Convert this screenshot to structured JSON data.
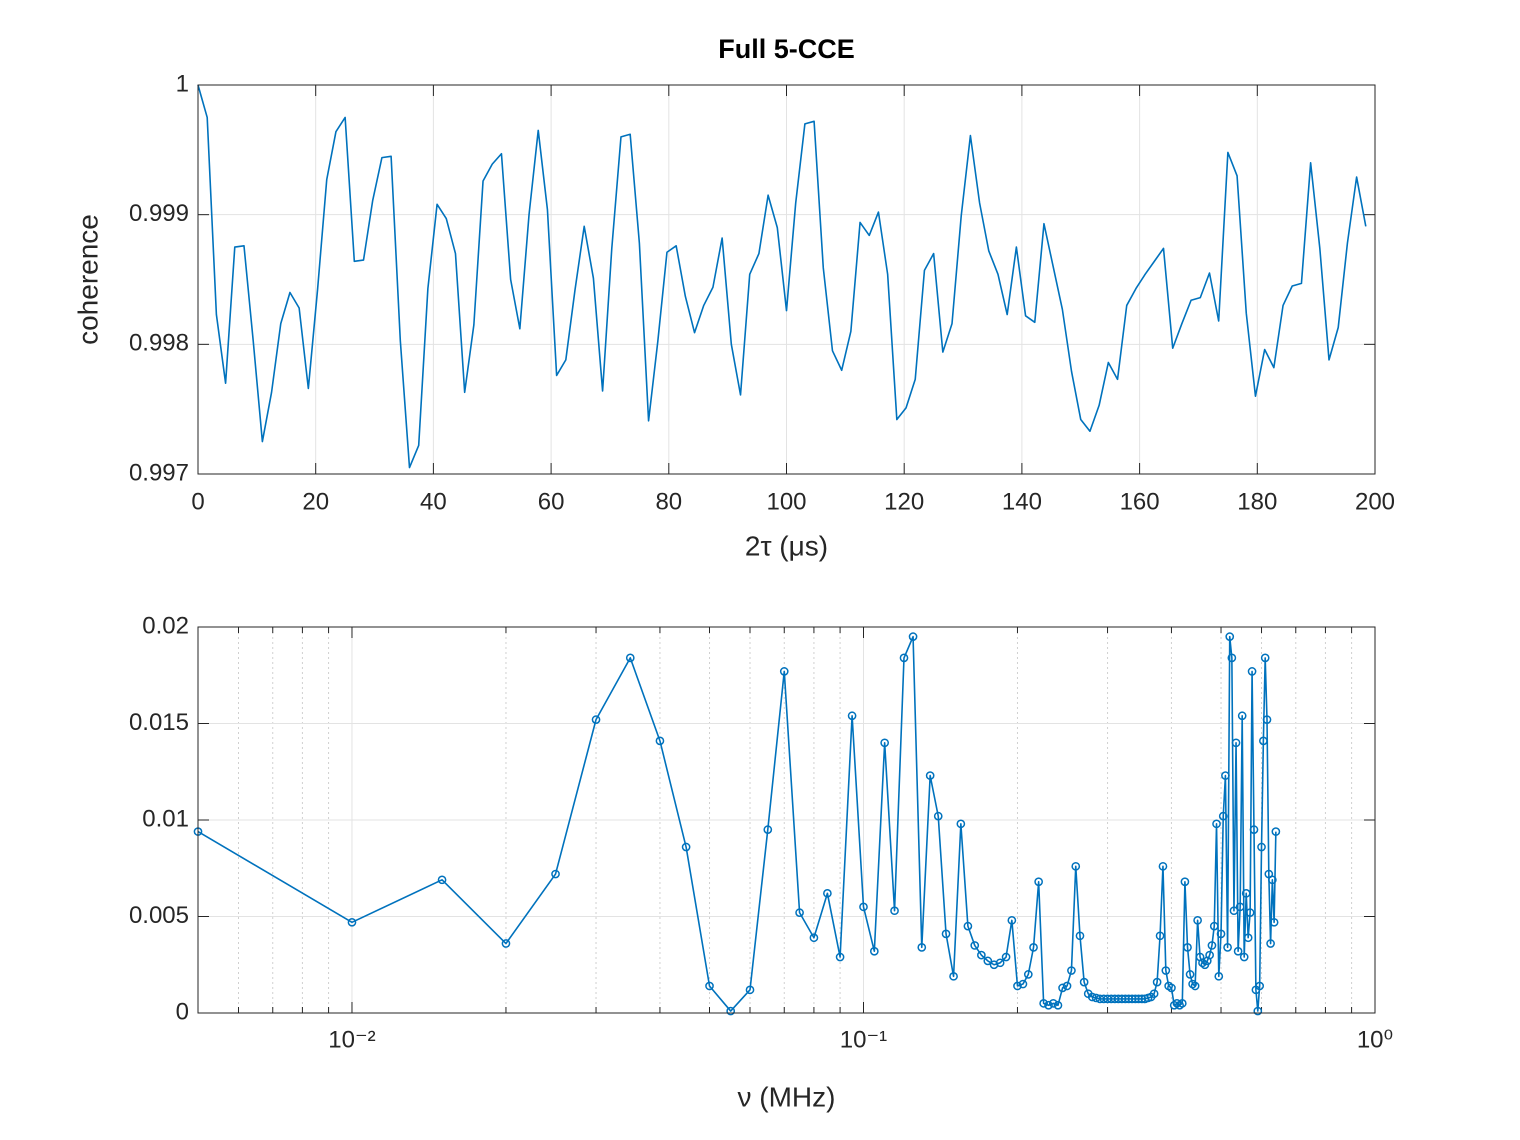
{
  "chart_data": [
    {
      "type": "line",
      "title": "Full 5-CCE",
      "xlabel": "2τ (μs)",
      "ylabel": "coherence",
      "color": "#0072bd",
      "grid": true,
      "xlim": [
        0,
        200
      ],
      "xticks": [
        0,
        20,
        40,
        60,
        80,
        100,
        120,
        140,
        160,
        180,
        200
      ],
      "ylim": [
        0.997,
        1
      ],
      "yticks": [
        0.997,
        0.998,
        0.999,
        1
      ],
      "x": [
        0,
        1.5625,
        3.125,
        4.6875,
        6.25,
        7.8125,
        9.375,
        10.9375,
        12.5,
        14.0625,
        15.625,
        17.1875,
        18.75,
        20.3125,
        21.875,
        23.4375,
        25,
        26.5625,
        28.125,
        29.6875,
        31.25,
        32.8125,
        34.375,
        35.9375,
        37.5,
        39.0625,
        40.625,
        42.1875,
        43.75,
        45.3125,
        46.875,
        48.4375,
        50,
        51.5625,
        53.125,
        54.6875,
        56.25,
        57.8125,
        59.375,
        60.9375,
        62.5,
        64.0625,
        65.625,
        67.1875,
        68.75,
        70.3125,
        71.875,
        73.4375,
        75,
        76.5625,
        78.125,
        79.6875,
        81.25,
        82.8125,
        84.375,
        85.9375,
        87.5,
        89.0625,
        90.625,
        92.1875,
        93.75,
        95.3125,
        96.875,
        98.4375,
        100,
        101.5625,
        103.125,
        104.6875,
        106.25,
        107.8125,
        109.375,
        110.9375,
        112.5,
        114.0625,
        115.625,
        117.1875,
        118.75,
        120.3125,
        121.875,
        123.4375,
        125,
        126.5625,
        128.125,
        129.6875,
        131.25,
        132.8125,
        134.375,
        135.9375,
        137.5,
        139.0625,
        140.625,
        142.1875,
        143.75,
        145.3125,
        146.875,
        148.4375,
        150,
        151.5625,
        153.125,
        154.6875,
        156.25,
        157.8125,
        159.375,
        160.9375,
        162.5,
        164.0625,
        165.625,
        167.1875,
        168.75,
        170.3125,
        171.875,
        173.4375,
        175,
        176.5625,
        178.125,
        179.6875,
        181.25,
        182.8125,
        184.375,
        185.9375,
        187.5,
        189.0625,
        190.625,
        192.1875,
        193.75,
        195.3125,
        196.875,
        198.4375
      ],
      "values": [
        1,
        0.99975,
        0.99823,
        0.9977,
        0.99875,
        0.99876,
        0.99803,
        0.99725,
        0.99763,
        0.99816,
        0.9984,
        0.99828,
        0.99766,
        0.99842,
        0.99927,
        0.99964,
        0.99975,
        0.99864,
        0.99865,
        0.99911,
        0.99944,
        0.99945,
        0.99803,
        0.99705,
        0.99722,
        0.99843,
        0.99908,
        0.99897,
        0.9987,
        0.99763,
        0.99815,
        0.99926,
        0.99939,
        0.99947,
        0.9985,
        0.99812,
        0.999,
        0.99965,
        0.99904,
        0.99776,
        0.99788,
        0.99842,
        0.99891,
        0.99851,
        0.99764,
        0.99874,
        0.9996,
        0.99962,
        0.99878,
        0.99741,
        0.99802,
        0.99871,
        0.99876,
        0.99837,
        0.99809,
        0.9983,
        0.99844,
        0.99882,
        0.998,
        0.99761,
        0.99854,
        0.9987,
        0.99915,
        0.9989,
        0.99826,
        0.99909,
        0.9997,
        0.99972,
        0.99859,
        0.99795,
        0.9978,
        0.9981,
        0.99894,
        0.99884,
        0.99902,
        0.99854,
        0.99742,
        0.99751,
        0.99773,
        0.99857,
        0.9987,
        0.99794,
        0.99816,
        0.99899,
        0.99961,
        0.99909,
        0.99872,
        0.99854,
        0.99823,
        0.99875,
        0.99822,
        0.99817,
        0.99893,
        0.9986,
        0.99827,
        0.99779,
        0.99742,
        0.99733,
        0.99753,
        0.99786,
        0.99773,
        0.9983,
        0.99843,
        0.99854,
        0.99864,
        0.99874,
        0.99797,
        0.99816,
        0.99834,
        0.99836,
        0.99855,
        0.99818,
        0.99948,
        0.9993,
        0.99824,
        0.9976,
        0.99796,
        0.99782,
        0.9983,
        0.99845,
        0.99847,
        0.9994,
        0.99874,
        0.99788,
        0.99813,
        0.99878,
        0.99929,
        0.99891
      ]
    },
    {
      "type": "line",
      "marker": "o",
      "xlabel": "ν (MHz)",
      "color": "#0072bd",
      "grid": true,
      "xscale": "log",
      "xlim": [
        0.005,
        1
      ],
      "xticks": [
        {
          "value": 0.01,
          "label": "10⁻²"
        },
        {
          "value": 0.1,
          "label": "10⁻¹"
        },
        {
          "value": 1,
          "label": "10⁰"
        }
      ],
      "xminorticks": [
        0.006,
        0.007,
        0.008,
        0.009,
        0.02,
        0.03,
        0.04,
        0.05,
        0.06,
        0.07,
        0.08,
        0.09,
        0.2,
        0.3,
        0.4,
        0.5,
        0.6,
        0.7,
        0.8,
        0.9
      ],
      "ylim": [
        0,
        0.02
      ],
      "yticks": [
        0,
        0.005,
        0.01,
        0.015,
        0.02
      ],
      "x": [
        0.005,
        0.01,
        0.015,
        0.02,
        0.025,
        0.03,
        0.035,
        0.04,
        0.045,
        0.05,
        0.055,
        0.06,
        0.065,
        0.07,
        0.075,
        0.08,
        0.085,
        0.09,
        0.095,
        0.1,
        0.105,
        0.11,
        0.115,
        0.12,
        0.125,
        0.13,
        0.135,
        0.14,
        0.145,
        0.15,
        0.155,
        0.16,
        0.165,
        0.17,
        0.175,
        0.18,
        0.185,
        0.19,
        0.195,
        0.2,
        0.205,
        0.21,
        0.215,
        0.22,
        0.225,
        0.23,
        0.235,
        0.24,
        0.245,
        0.25,
        0.255,
        0.26,
        0.265,
        0.27,
        0.275,
        0.28,
        0.285,
        0.29,
        0.295,
        0.3,
        0.305,
        0.31,
        0.315,
        0.32,
        0.325,
        0.33,
        0.335,
        0.34,
        0.345,
        0.35,
        0.355,
        0.36,
        0.365,
        0.37,
        0.375,
        0.38,
        0.385,
        0.39,
        0.395,
        0.4,
        0.405,
        0.41,
        0.415,
        0.42,
        0.425,
        0.43,
        0.435,
        0.44,
        0.445,
        0.45,
        0.455,
        0.46,
        0.465,
        0.47,
        0.475,
        0.48,
        0.485,
        0.49,
        0.495,
        0.5,
        0.505,
        0.51,
        0.515,
        0.52,
        0.525,
        0.53,
        0.535,
        0.54,
        0.545,
        0.55,
        0.555,
        0.56,
        0.565,
        0.57,
        0.575,
        0.58,
        0.585,
        0.59,
        0.595,
        0.6,
        0.605,
        0.61,
        0.615,
        0.62,
        0.625,
        0.63,
        0.635,
        0.64
      ],
      "values": [
        0.0094,
        0.0047,
        0.0069,
        0.0036,
        0.0072,
        0.0152,
        0.0184,
        0.0141,
        0.0086,
        0.0014,
        0.0001,
        0.0012,
        0.0095,
        0.0177,
        0.0052,
        0.0039,
        0.0062,
        0.0029,
        0.0154,
        0.0055,
        0.0032,
        0.014,
        0.0053,
        0.0184,
        0.0195,
        0.0034,
        0.0123,
        0.0102,
        0.0041,
        0.0019,
        0.0098,
        0.0045,
        0.0035,
        0.003,
        0.0027,
        0.0025,
        0.0026,
        0.0029,
        0.0048,
        0.0014,
        0.0015,
        0.002,
        0.0034,
        0.0068,
        0.0005,
        0.0004,
        0.0005,
        0.0004,
        0.0013,
        0.0014,
        0.0022,
        0.0076,
        0.004,
        0.0016,
        0.001,
        0.00083,
        0.00078,
        0.00073,
        0.00073,
        0.00073,
        0.00073,
        0.00073,
        0.00073,
        0.00073,
        0.00073,
        0.00073,
        0.00073,
        0.00073,
        0.00073,
        0.00073,
        0.00073,
        0.00078,
        0.00083,
        0.001,
        0.0016,
        0.004,
        0.0076,
        0.0022,
        0.0014,
        0.0013,
        0.0004,
        0.0005,
        0.0004,
        0.0005,
        0.0068,
        0.0034,
        0.002,
        0.0015,
        0.0014,
        0.0048,
        0.0029,
        0.0026,
        0.0025,
        0.0027,
        0.003,
        0.0035,
        0.0045,
        0.0098,
        0.0019,
        0.0041,
        0.0102,
        0.0123,
        0.0034,
        0.0195,
        0.0184,
        0.0053,
        0.014,
        0.0032,
        0.0055,
        0.0154,
        0.0029,
        0.0062,
        0.0039,
        0.0052,
        0.0177,
        0.0095,
        0.0012,
        0.0001,
        0.0014,
        0.0086,
        0.0141,
        0.0184,
        0.0152,
        0.0072,
        0.0036,
        0.0069,
        0.0047,
        0.0094
      ]
    }
  ]
}
